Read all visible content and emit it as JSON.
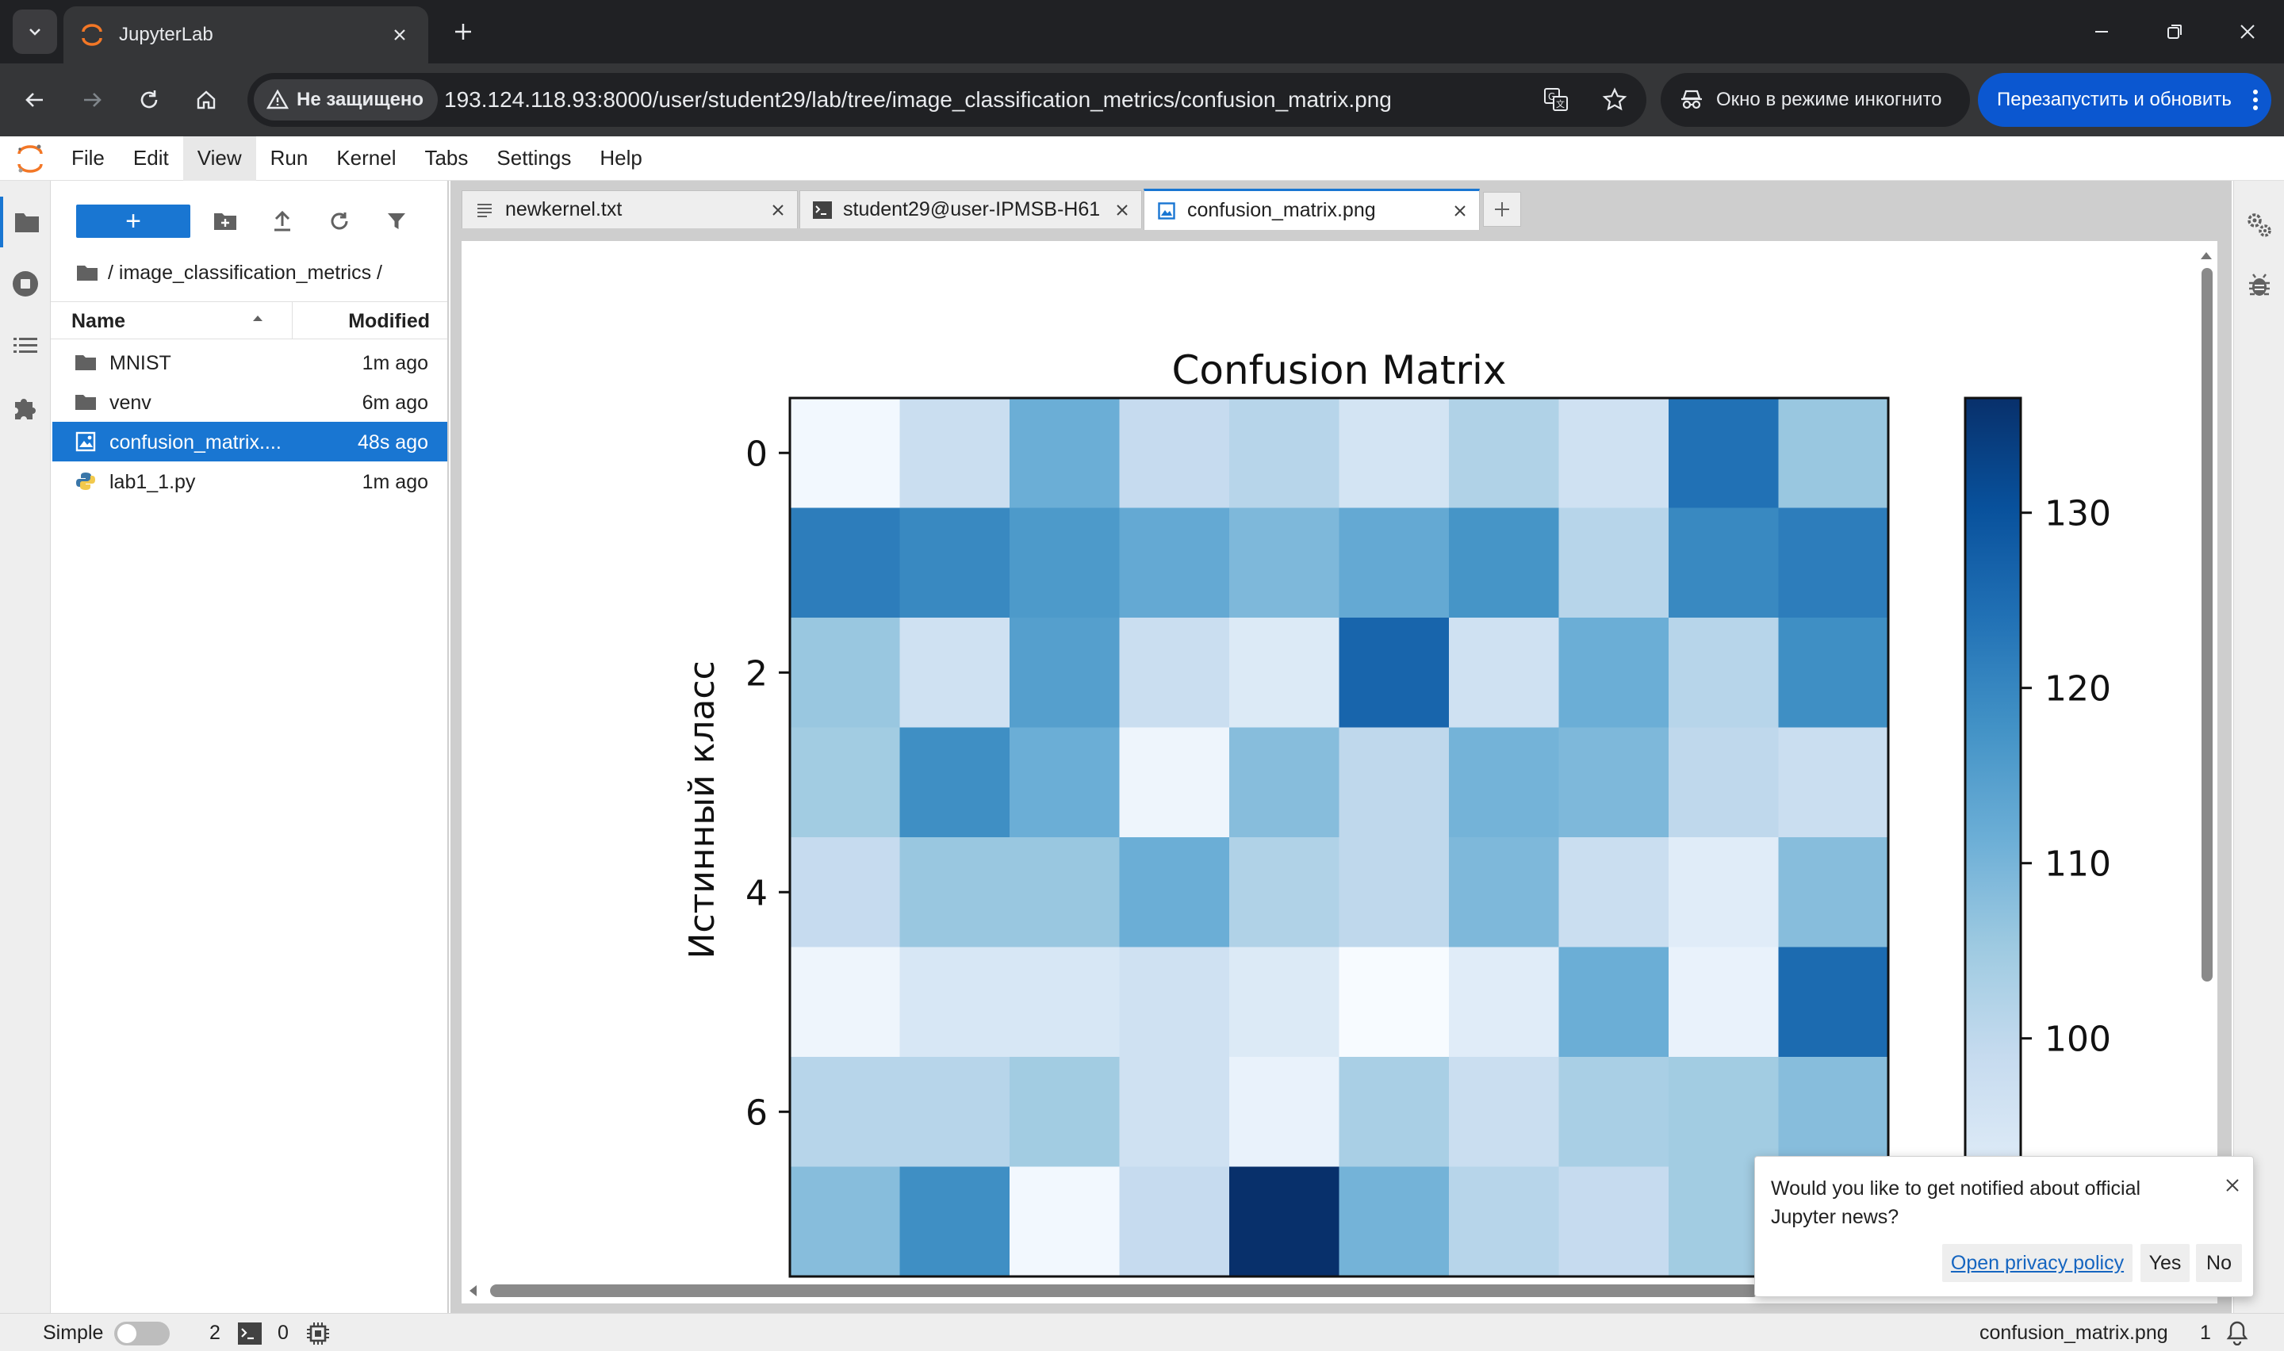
{
  "browser": {
    "tab_title": "JupyterLab",
    "security_label": "Не защищено",
    "url": "193.124.118.93:8000/user/student29/lab/tree/image_classification_metrics/confusion_matrix.png",
    "incognito_label": "Окно в режиме инкогнито",
    "restart_label": "Перезапустить и обновить"
  },
  "menu": {
    "items": [
      "File",
      "Edit",
      "View",
      "Run",
      "Kernel",
      "Tabs",
      "Settings",
      "Help"
    ],
    "active_item": "View"
  },
  "filebrowser": {
    "new_label": "+",
    "breadcrumb": "/ image_classification_metrics /",
    "col_name": "Name",
    "col_modified": "Modified",
    "rows": [
      {
        "name": "MNIST",
        "modified": "1m ago",
        "type": "folder"
      },
      {
        "name": "venv",
        "modified": "6m ago",
        "type": "folder"
      },
      {
        "name": "confusion_matrix....",
        "modified": "48s ago",
        "type": "image",
        "selected": true
      },
      {
        "name": "lab1_1.py",
        "modified": "1m ago",
        "type": "python"
      }
    ]
  },
  "doc_tabs": [
    {
      "label": "newkernel.txt",
      "icon": "text-file-icon"
    },
    {
      "label": "student29@user-IPMSB-H61",
      "icon": "terminal-icon"
    },
    {
      "label": "confusion_matrix.png",
      "icon": "image-file-icon",
      "current": true
    }
  ],
  "chart_data": {
    "type": "heatmap",
    "title": "Confusion Matrix",
    "ylabel": "Истинный класс",
    "y_ticks": [
      "0",
      "2",
      "4",
      "6"
    ],
    "colorbar_ticks": [
      "100",
      "110",
      "120",
      "130"
    ],
    "colormap": "Blues",
    "value_range": [
      93,
      137
    ],
    "matrix": [
      [
        94,
        103,
        115,
        104,
        106,
        101,
        107,
        102,
        126,
        110
      ],
      [
        124,
        122,
        119,
        116,
        113,
        116,
        120,
        106,
        122,
        124
      ],
      [
        110,
        102,
        118,
        103,
        99,
        128,
        102,
        115,
        106,
        121
      ],
      [
        109,
        121,
        115,
        95,
        112,
        105,
        114,
        113,
        105,
        103
      ],
      [
        104,
        110,
        110,
        115,
        107,
        105,
        113,
        103,
        98,
        112
      ],
      [
        95,
        100,
        100,
        102,
        99,
        93,
        98,
        115,
        96,
        127
      ],
      [
        106,
        106,
        109,
        102,
        96,
        108,
        103,
        108,
        109,
        112
      ],
      [
        112,
        121,
        94,
        104,
        137,
        114,
        106,
        104,
        109,
        112
      ]
    ]
  },
  "toast": {
    "message": "Would you like to get notified about official Jupyter news?",
    "privacy_label": "Open privacy policy",
    "yes_label": "Yes",
    "no_label": "No"
  },
  "status": {
    "mode_label": "Simple",
    "terminals_count": "2",
    "kernels_count": "0",
    "current_file": "confusion_matrix.png",
    "notification_count": "1"
  },
  "colors": {
    "accent": "#1976d2",
    "chrome_dark": "#202124",
    "chrome_toolbar": "#353638",
    "restart_button": "#0b57d0"
  }
}
